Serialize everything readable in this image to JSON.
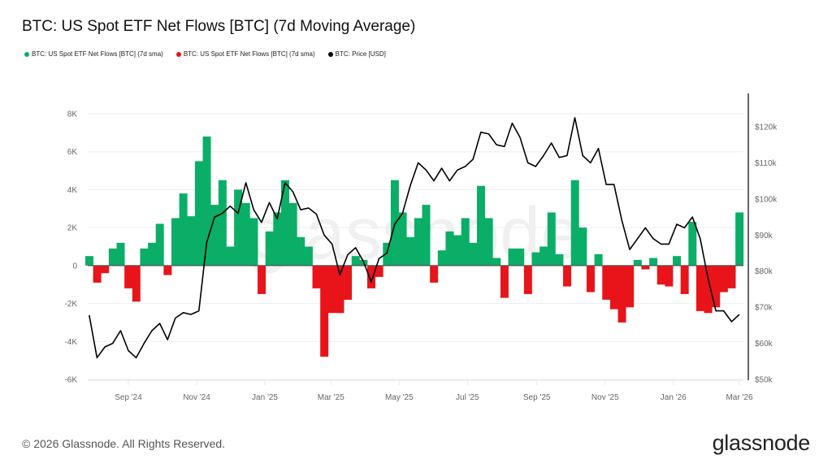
{
  "title": "BTC: US Spot ETF Net Flows [BTC] (7d Moving Average)",
  "legend": [
    {
      "label": "BTC: US Spot ETF Net Flows [BTC] (7d sma)",
      "color": "#0aae67"
    },
    {
      "label": "BTC: US Spot ETF Net Flows [BTC] (7d sma)",
      "color": "#e8141a"
    },
    {
      "label": "BTC: Price [USD]",
      "color": "#000000"
    }
  ],
  "watermark": "glassnode",
  "footer": "© 2026 Glassnode. All Rights Reserved.",
  "logo": "glassnode",
  "chart_data": {
    "type": "bar+line",
    "title": "BTC: US Spot ETF Net Flows [BTC] (7d Moving Average)",
    "grid": true,
    "legend_position": "top-left",
    "x_range": [
      "2024-07-28",
      "2026-03-01"
    ],
    "x_ticks": [
      {
        "label": "Sep '24",
        "date": "2024-09-01"
      },
      {
        "label": "Nov '24",
        "date": "2024-11-01"
      },
      {
        "label": "Jan '25",
        "date": "2025-01-01"
      },
      {
        "label": "Mar '25",
        "date": "2025-03-01"
      },
      {
        "label": "May '25",
        "date": "2025-05-01"
      },
      {
        "label": "Jul '25",
        "date": "2025-07-01"
      },
      {
        "label": "Sep '25",
        "date": "2025-09-01"
      },
      {
        "label": "Nov '25",
        "date": "2025-11-01"
      },
      {
        "label": "Jan '26",
        "date": "2026-01-01"
      },
      {
        "label": "Mar '26",
        "date": "2026-03-01"
      }
    ],
    "y_left": {
      "range": [
        -6000,
        8000
      ],
      "ticks": [
        {
          "label": "8K",
          "value": 8000
        },
        {
          "label": "6K",
          "value": 6000
        },
        {
          "label": "4K",
          "value": 4000
        },
        {
          "label": "2K",
          "value": 2000
        },
        {
          "label": "0",
          "value": 0
        },
        {
          "label": "-2K",
          "value": -2000
        },
        {
          "label": "-4K",
          "value": -4000
        },
        {
          "label": "-6K",
          "value": -6000
        }
      ]
    },
    "y_right": {
      "range": [
        50000,
        127000
      ],
      "ticks": [
        {
          "label": "$120k",
          "value": 120000
        },
        {
          "label": "$110k",
          "value": 110000
        },
        {
          "label": "$100k",
          "value": 100000
        },
        {
          "label": "$90k",
          "value": 90000
        },
        {
          "label": "$80k",
          "value": 80000
        },
        {
          "label": "$70k",
          "value": 70000
        },
        {
          "label": "$60k",
          "value": 60000
        },
        {
          "label": "$50k",
          "value": 50000
        }
      ]
    },
    "positive_color": "#0aae67",
    "negative_color": "#e8141a",
    "price_color": "#000000",
    "dates": [
      "2024-07-28",
      "2024-08-04",
      "2024-08-11",
      "2024-08-18",
      "2024-08-25",
      "2024-09-01",
      "2024-09-08",
      "2024-09-15",
      "2024-09-22",
      "2024-09-29",
      "2024-10-06",
      "2024-10-13",
      "2024-10-20",
      "2024-10-27",
      "2024-11-03",
      "2024-11-10",
      "2024-11-17",
      "2024-11-24",
      "2024-12-01",
      "2024-12-08",
      "2024-12-15",
      "2024-12-22",
      "2024-12-29",
      "2025-01-05",
      "2025-01-12",
      "2025-01-19",
      "2025-01-26",
      "2025-02-02",
      "2025-02-09",
      "2025-02-16",
      "2025-02-23",
      "2025-03-02",
      "2025-03-09",
      "2025-03-16",
      "2025-03-23",
      "2025-03-30",
      "2025-04-06",
      "2025-04-13",
      "2025-04-20",
      "2025-04-27",
      "2025-05-04",
      "2025-05-11",
      "2025-05-18",
      "2025-05-25",
      "2025-06-01",
      "2025-06-08",
      "2025-06-15",
      "2025-06-22",
      "2025-06-29",
      "2025-07-06",
      "2025-07-13",
      "2025-07-20",
      "2025-07-27",
      "2025-08-03",
      "2025-08-10",
      "2025-08-17",
      "2025-08-24",
      "2025-08-31",
      "2025-09-07",
      "2025-09-14",
      "2025-09-21",
      "2025-09-28",
      "2025-10-05",
      "2025-10-12",
      "2025-10-19",
      "2025-10-26",
      "2025-11-02",
      "2025-11-09",
      "2025-11-16",
      "2025-11-23",
      "2025-11-30",
      "2025-12-07",
      "2025-12-14",
      "2025-12-21",
      "2025-12-28",
      "2026-01-04",
      "2026-01-11",
      "2026-01-18",
      "2026-01-25",
      "2026-02-01",
      "2026-02-08",
      "2026-02-15",
      "2026-02-22",
      "2026-03-01"
    ],
    "net_flows_btc": [
      500,
      -900,
      -400,
      900,
      1200,
      -1200,
      -1900,
      900,
      1200,
      2200,
      -500,
      2500,
      3800,
      2600,
      5500,
      6800,
      3200,
      4500,
      1000,
      4000,
      3300,
      2500,
      -1500,
      1800,
      2800,
      4500,
      3300,
      1500,
      1000,
      -1200,
      -4800,
      -2500,
      -2500,
      -1800,
      500,
      300,
      -1200,
      -600,
      1200,
      4500,
      2800,
      1500,
      2500,
      3200,
      -900,
      800,
      1800,
      1600,
      2500,
      1200,
      4200,
      2500,
      400,
      -1700,
      900,
      900,
      -1500,
      700,
      1000,
      2800,
      600,
      -1100,
      4500,
      2000,
      -1400,
      600,
      -1800,
      -2300,
      -3000,
      -2200,
      300,
      -200,
      400,
      -1000,
      -1100,
      500,
      -1500,
      2300,
      -2400,
      -2500,
      -2200,
      -1400,
      -1200,
      2800
    ],
    "price_usd": [
      67800,
      56000,
      59000,
      60000,
      63500,
      58000,
      56000,
      60000,
      63500,
      65500,
      61000,
      67000,
      68500,
      68000,
      69000,
      88000,
      95000,
      96000,
      98000,
      96000,
      104500,
      97000,
      93500,
      99000,
      94500,
      104500,
      102000,
      97000,
      97500,
      95800,
      90000,
      87500,
      79000,
      84500,
      86500,
      82700,
      77000,
      83500,
      85000,
      93000,
      96000,
      103800,
      110000,
      108000,
      105000,
      108500,
      105000,
      108000,
      109000,
      111000,
      118500,
      118000,
      115000,
      114500,
      121000,
      117000,
      110000,
      109000,
      112000,
      115500,
      111500,
      112000,
      122500,
      112000,
      110000,
      114000,
      104000,
      104000,
      94000,
      86000,
      89000,
      92000,
      89000,
      87500,
      87500,
      93000,
      92000,
      95000,
      89000,
      78000,
      69000,
      69000,
      66000,
      68000
    ]
  }
}
